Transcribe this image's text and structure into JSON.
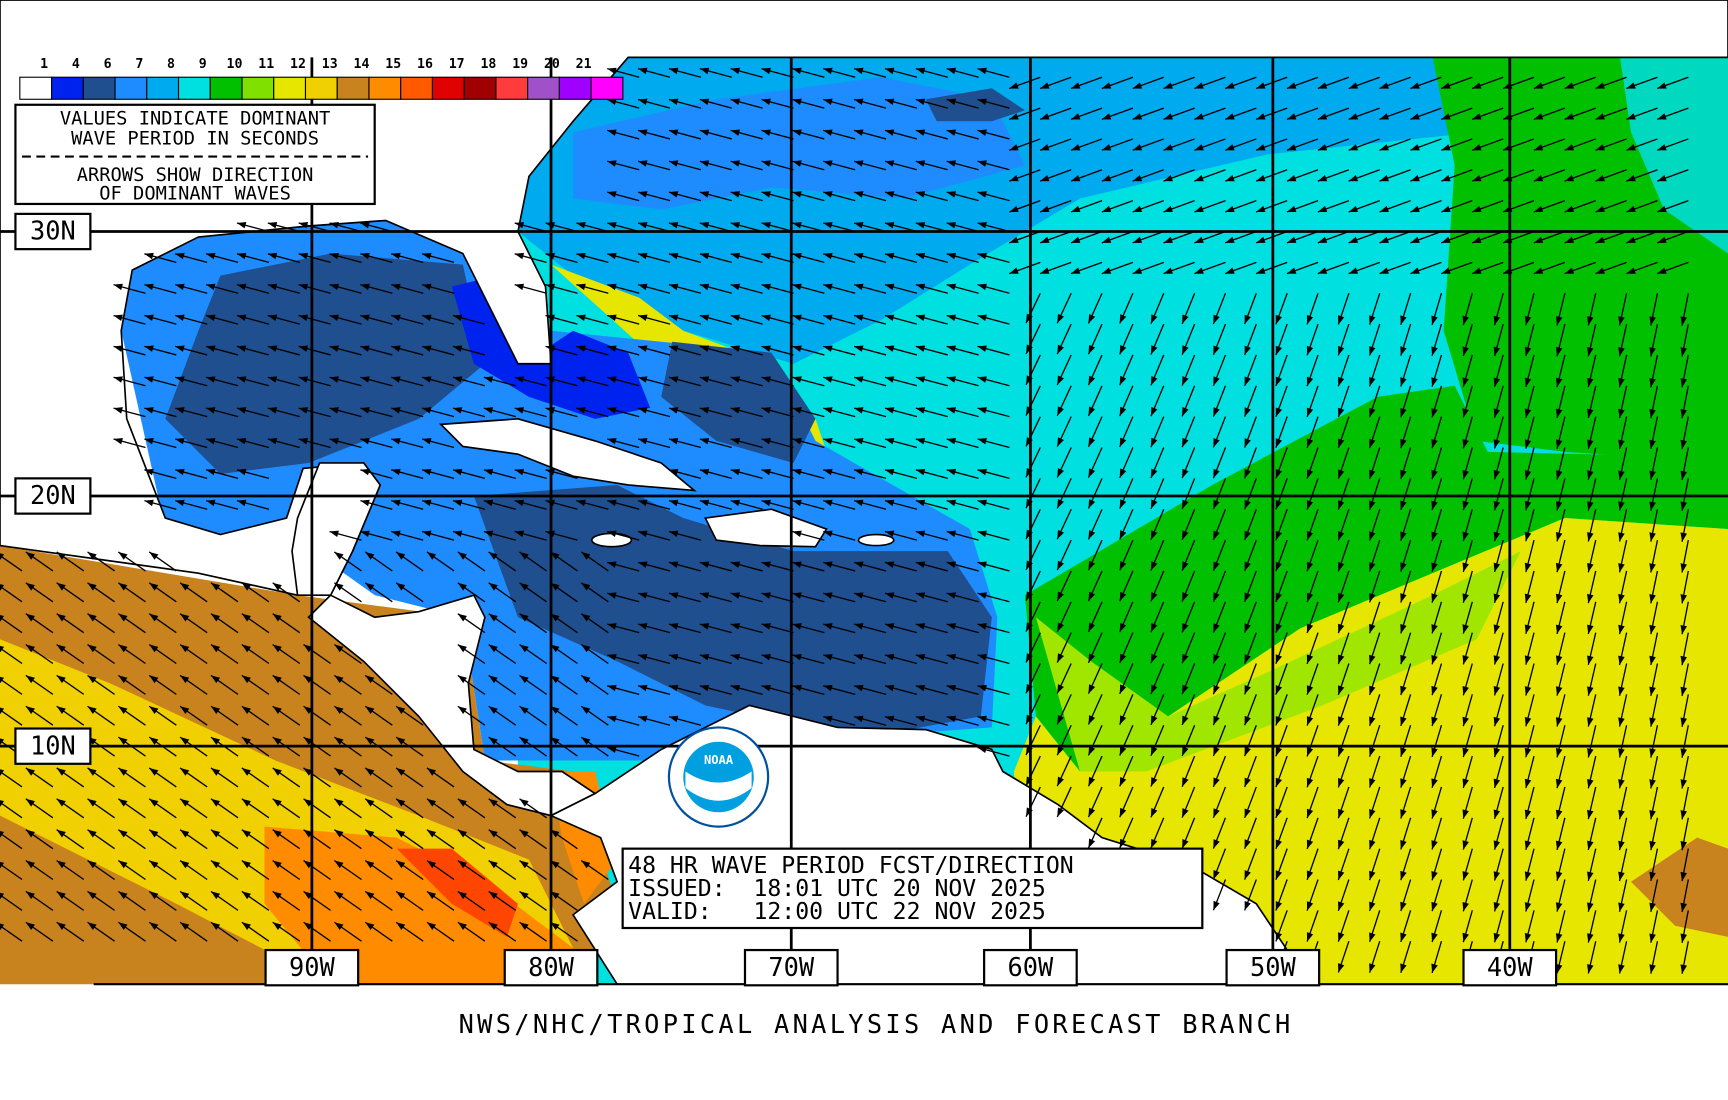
{
  "legend": {
    "labels": [
      "1",
      "4",
      "6",
      "7",
      "8",
      "9",
      "10",
      "11",
      "12",
      "13",
      "14",
      "15",
      "16",
      "17",
      "18",
      "19",
      "20",
      "21"
    ],
    "lines": [
      "VALUES INDICATE DOMINANT",
      "WAVE PERIOD IN SECONDS",
      "ARROWS SHOW DIRECTION",
      "OF DOMINANT WAVES"
    ]
  },
  "latitude_labels": [
    "30N",
    "20N",
    "10N"
  ],
  "longitude_labels": [
    "90W",
    "80W",
    "70W",
    "60W",
    "50W",
    "40W"
  ],
  "forecast_box": [
    "48 HR WAVE PERIOD FCST/DIRECTION",
    "ISSUED:  18:01 UTC 20 NOV 2025",
    "VALID:   12:00 UTC 22 NOV 2025"
  ],
  "logo": "NOAA",
  "footer": "NWS/NHC/TROPICAL ANALYSIS AND FORECAST BRANCH"
}
